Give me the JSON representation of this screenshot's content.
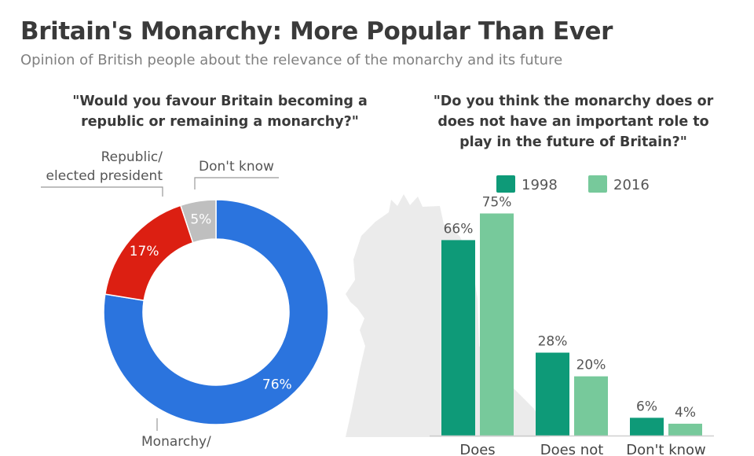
{
  "title": "Britain's Monarchy: More Popular Than Ever",
  "subtitle": "Opinion of British people about the relevance of the monarchy and its future",
  "chart_data": [
    {
      "type": "pie",
      "donut": true,
      "title": "\"Would you favour Britain becoming a republic or remaining a monarchy?\"",
      "title_lines": [
        "\"Would you favour Britain becoming a",
        "republic or remaining a monarchy?\""
      ],
      "slices": [
        {
          "label_lines": [
            "Monarchy/",
            ""
          ],
          "value": 76,
          "value_label": "76%",
          "color": "#2b74de"
        },
        {
          "label_lines": [
            "Republic/",
            "elected president"
          ],
          "value": 17,
          "value_label": "17%",
          "color": "#dc1f12"
        },
        {
          "label_lines": [
            "Don't know"
          ],
          "value": 5,
          "value_label": "5%",
          "color": "#bfbfbf"
        }
      ]
    },
    {
      "type": "bar",
      "title": "\"Do you think the monarchy does or does not have an important role to play in the future of Britain?\"",
      "title_lines": [
        "\"Do you think the monarchy does or",
        "does not have an important role to",
        "play in the future of Britain?\""
      ],
      "categories": [
        "Does",
        "Does not",
        "Don't know"
      ],
      "series": [
        {
          "name": "1998",
          "values": [
            66,
            28,
            6
          ],
          "value_labels": [
            "66%",
            "28%",
            "6%"
          ],
          "color": "#0e9a78"
        },
        {
          "name": "2016",
          "values": [
            75,
            20,
            4
          ],
          "value_labels": [
            "75%",
            "20%",
            "4%"
          ],
          "color": "#77c99b"
        }
      ],
      "ylim": [
        0,
        90
      ],
      "grid": false,
      "legend": "top"
    }
  ]
}
